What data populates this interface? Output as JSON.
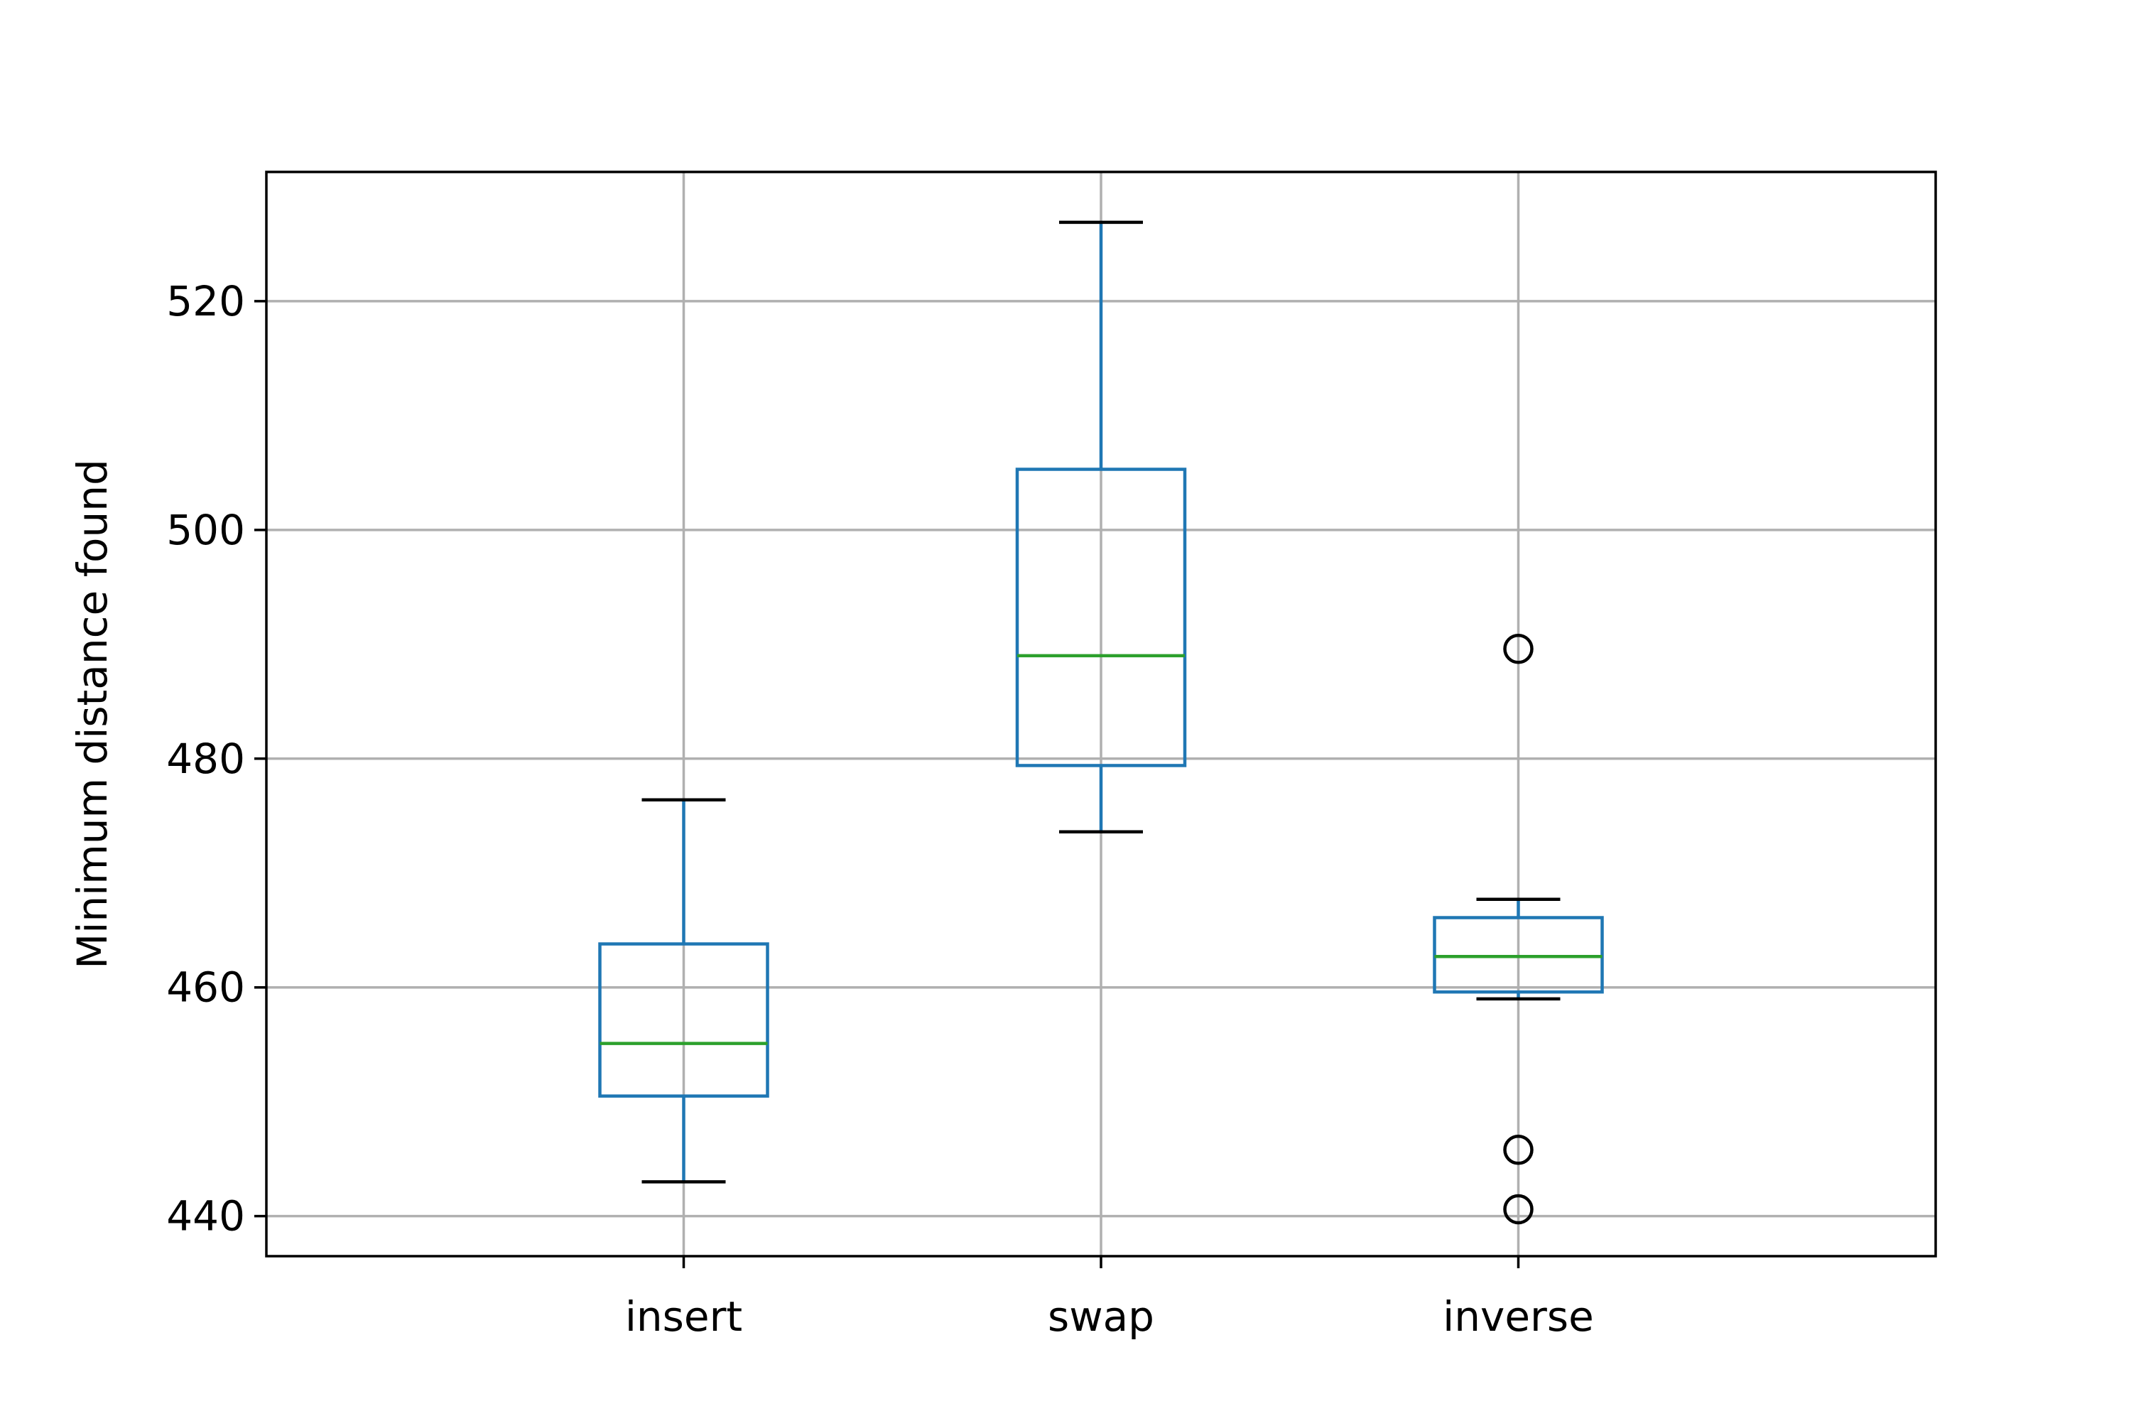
{
  "chart_data": {
    "type": "box",
    "title": "",
    "xlabel": "",
    "ylabel": "Minimum distance found",
    "categories": [
      "insert",
      "swap",
      "inverse"
    ],
    "boxes": [
      {
        "name": "insert",
        "whisker_low": 443.0,
        "q1": 450.5,
        "median": 455.1,
        "q3": 463.8,
        "whisker_high": 476.4,
        "outliers": []
      },
      {
        "name": "swap",
        "whisker_low": 473.6,
        "q1": 479.4,
        "median": 489.0,
        "q3": 505.3,
        "whisker_high": 526.9,
        "outliers": []
      },
      {
        "name": "inverse",
        "whisker_low": 459.0,
        "q1": 459.6,
        "median": 462.7,
        "q3": 466.1,
        "whisker_high": 467.7,
        "outliers": [
          489.6,
          445.8,
          440.6
        ]
      }
    ],
    "ylim": [
      436.5,
      531.3
    ],
    "yticks": [
      440,
      460,
      480,
      500,
      520
    ],
    "ytick_labels": [
      "440",
      "460",
      "480",
      "500",
      "520"
    ],
    "grid": true,
    "colors": {
      "box": "#1f77b4",
      "median": "#2ca02c",
      "whisker_cap": "#000000",
      "outlier": "#000000",
      "grid": "#b0b0b0",
      "axes": "#000000"
    }
  }
}
